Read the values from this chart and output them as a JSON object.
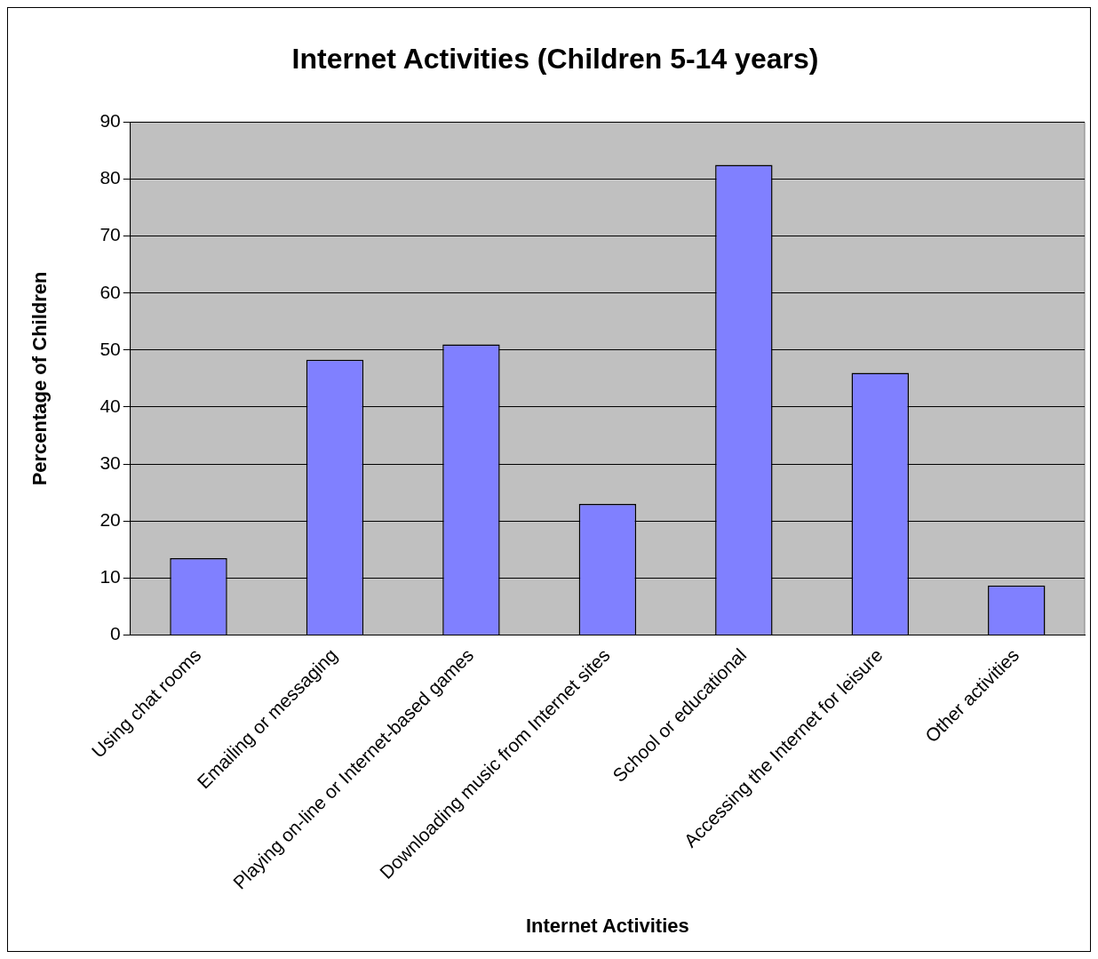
{
  "chart_data": {
    "type": "bar",
    "title": "Internet Activities (Children 5-14 years)",
    "xlabel": "Internet Activities",
    "ylabel": "Percentage of Children",
    "categories": [
      "Using chat rooms",
      "Emailing or messaging",
      "Playing on-line or Internet-based games",
      "Downloading music from Internet sites",
      "School or educational",
      "Accessing the Internet for leisure",
      "Other activities"
    ],
    "values": [
      13.5,
      48.3,
      51,
      23,
      82.5,
      46,
      8.7
    ],
    "color": "#8080ff",
    "ylim": [
      0,
      90
    ],
    "yticks": [
      0,
      10,
      20,
      30,
      40,
      50,
      60,
      70,
      80,
      90
    ],
    "grid": "y",
    "legend": false
  }
}
